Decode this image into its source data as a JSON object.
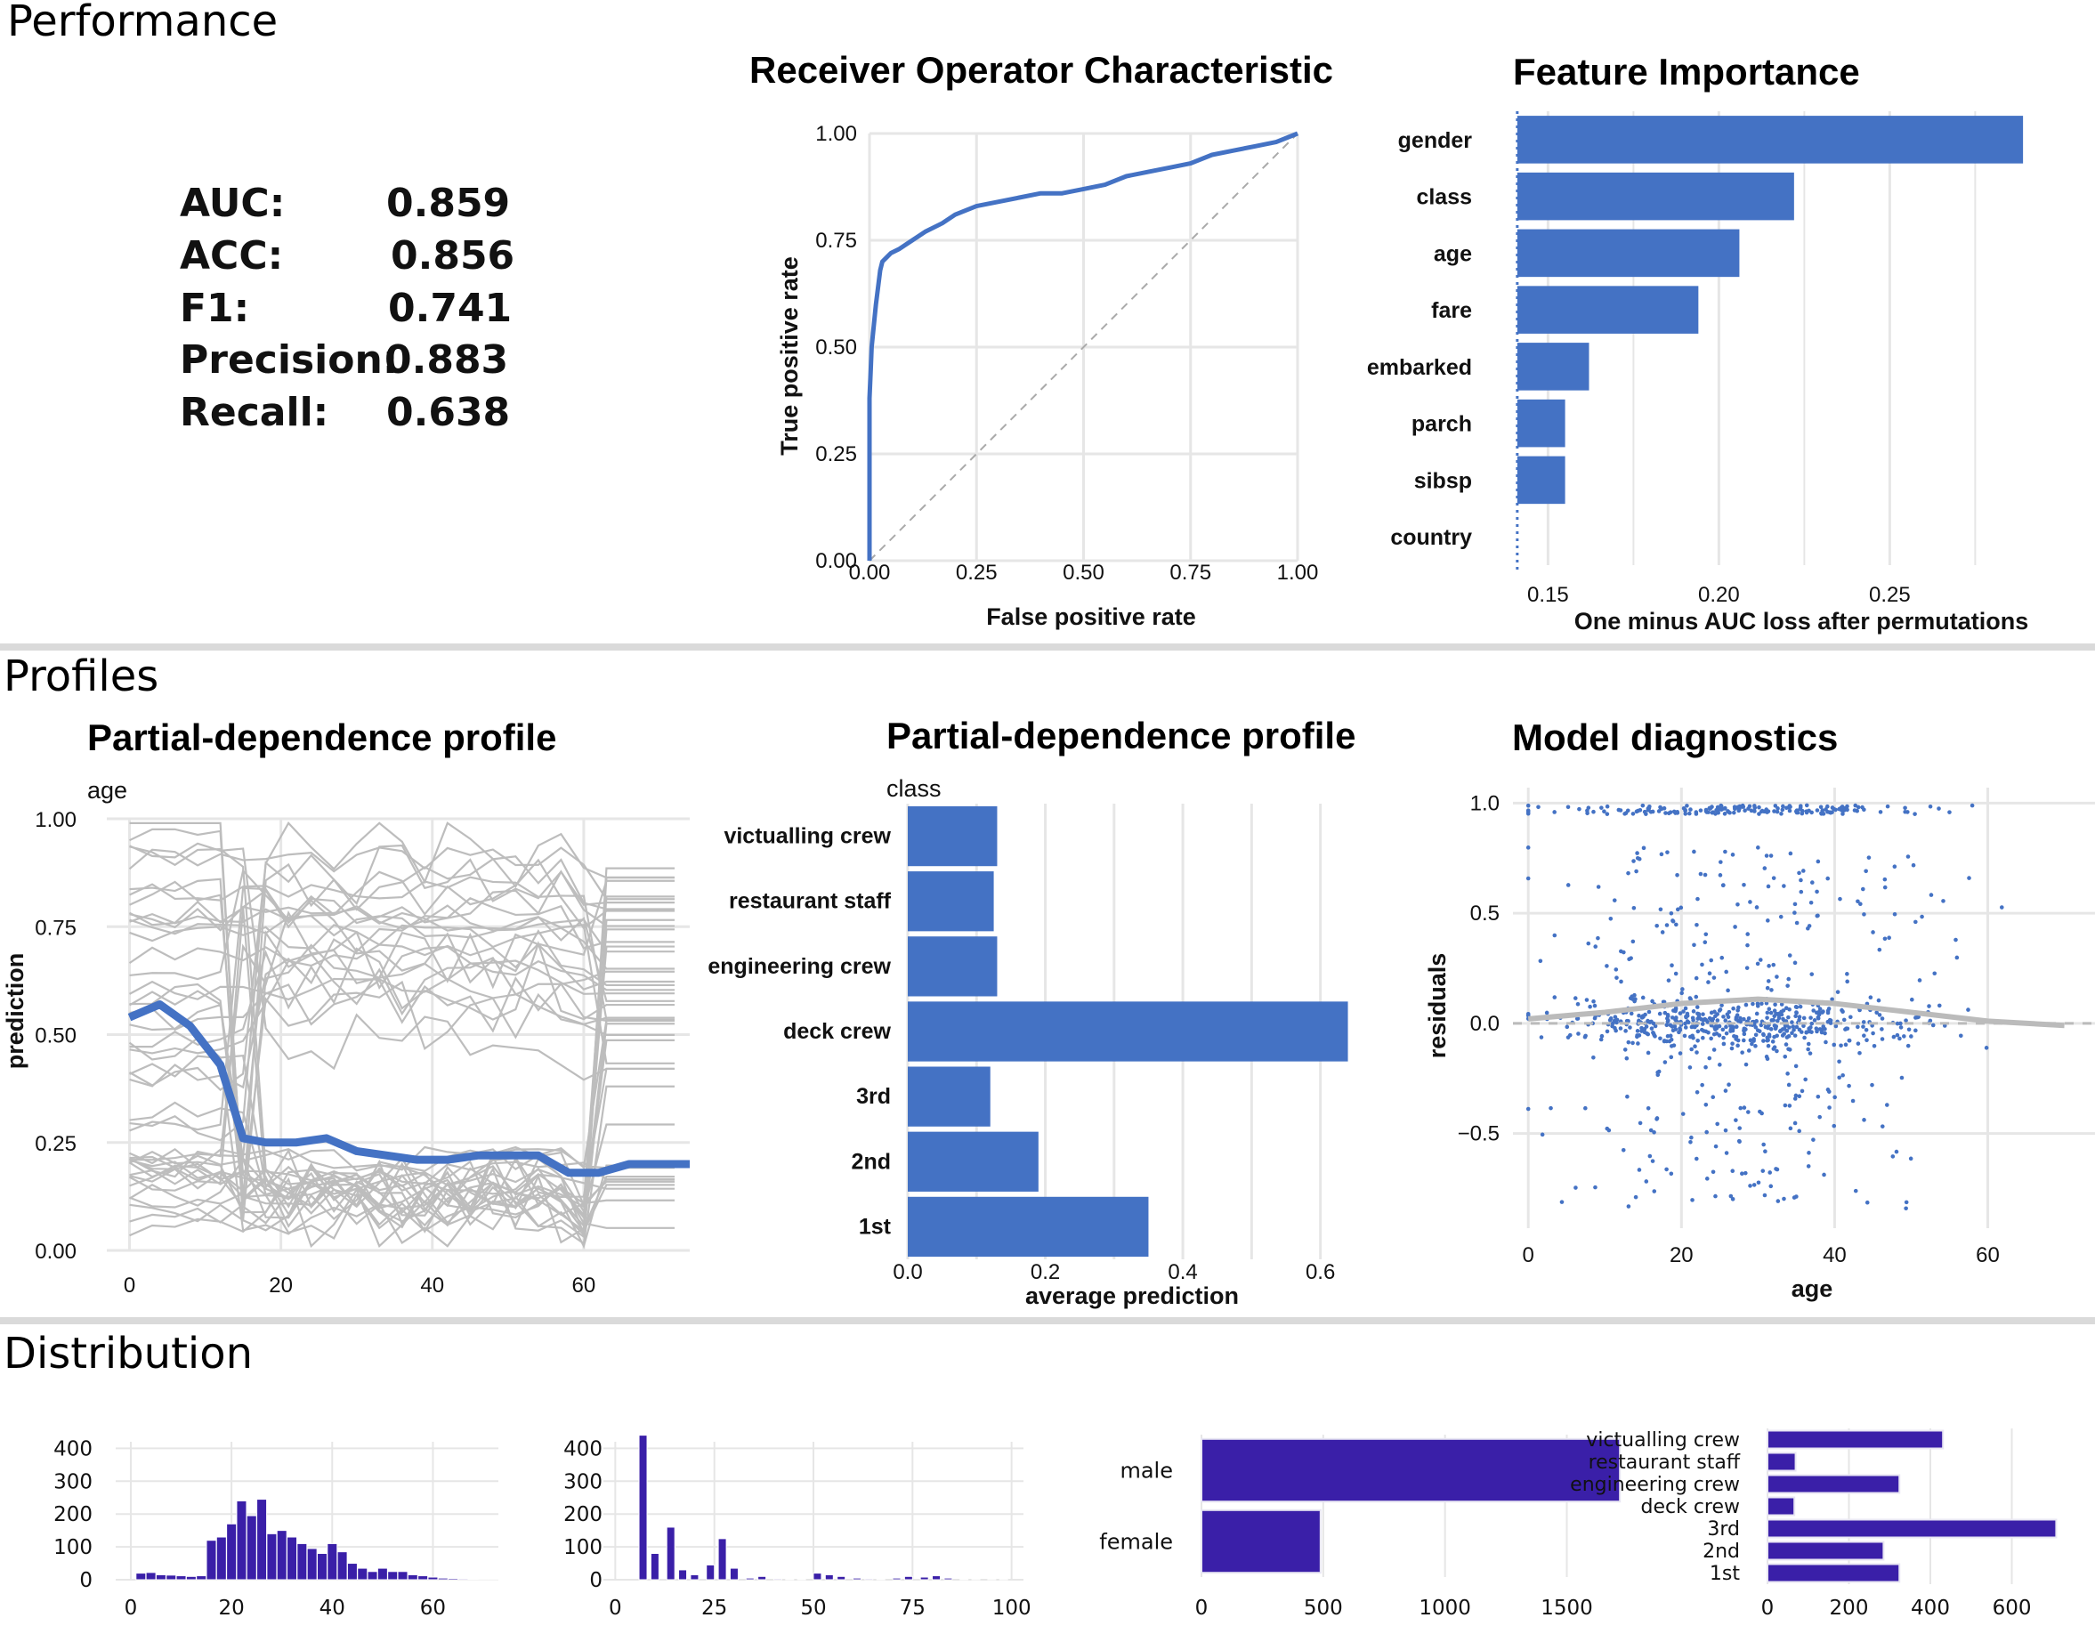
{
  "sections": {
    "performance": "Performance",
    "profiles": "Profiles",
    "distribution": "Distribution"
  },
  "colors": {
    "accent": "#4472c4",
    "distribution": "#3a1fa8",
    "profile_lines": "#bdbdbd",
    "gridline": "#e6e6e6",
    "separator": "#dadada"
  },
  "metrics": [
    {
      "label": "AUC:",
      "value": "0.859"
    },
    {
      "label": "ACC:",
      "value": "0.856"
    },
    {
      "label": "F1:",
      "value": "0.741"
    },
    {
      "label": "Precision:",
      "value": "0.883"
    },
    {
      "label": "Recall:",
      "value": "0.638"
    }
  ],
  "chart_data": [
    {
      "id": "roc",
      "type": "line",
      "title": "Receiver Operator Characteristic",
      "xlabel": "False positive rate",
      "ylabel": "True positive rate",
      "xlim": [
        0,
        1
      ],
      "ylim": [
        0,
        1
      ],
      "xticks": [
        "0.00",
        "0.25",
        "0.50",
        "0.75",
        "1.00"
      ],
      "yticks": [
        "0.00",
        "0.25",
        "0.50",
        "0.75",
        "1.00"
      ],
      "x": [
        0,
        0,
        0.003,
        0.005,
        0.01,
        0.015,
        0.02,
        0.025,
        0.03,
        0.04,
        0.05,
        0.07,
        0.1,
        0.13,
        0.17,
        0.2,
        0.25,
        0.3,
        0.35,
        0.4,
        0.45,
        0.5,
        0.55,
        0.6,
        0.65,
        0.7,
        0.75,
        0.8,
        0.85,
        0.9,
        0.95,
        1.0
      ],
      "y": [
        0,
        0.38,
        0.45,
        0.5,
        0.55,
        0.6,
        0.64,
        0.68,
        0.7,
        0.71,
        0.72,
        0.73,
        0.75,
        0.77,
        0.79,
        0.81,
        0.83,
        0.84,
        0.85,
        0.86,
        0.86,
        0.87,
        0.88,
        0.9,
        0.91,
        0.92,
        0.93,
        0.95,
        0.96,
        0.97,
        0.98,
        1.0
      ],
      "diagonal": true
    },
    {
      "id": "feature_importance",
      "type": "bar",
      "title": "Feature Importance",
      "xlabel": "One minus AUC loss after permutations",
      "categories": [
        "gender",
        "class",
        "age",
        "fare",
        "embarked",
        "parch",
        "sibsp",
        "country"
      ],
      "values": [
        0.289,
        0.222,
        0.206,
        0.194,
        0.162,
        0.155,
        0.155,
        0.141
      ],
      "baseline": 0.141,
      "xlim": [
        0.14,
        0.296
      ],
      "xticks": [
        0.15,
        0.2,
        0.25
      ],
      "xticklabels": [
        "0.15",
        "0.20",
        "0.25"
      ]
    },
    {
      "id": "pdp_age",
      "type": "line",
      "title": "Partial-dependence profile",
      "subtitle": "age",
      "xlabel": "",
      "ylabel": "prediction",
      "xlim": [
        -3,
        74
      ],
      "ylim": [
        0,
        1
      ],
      "xticks": [
        0,
        20,
        40,
        60
      ],
      "yticks": [
        "0.00",
        "0.25",
        "0.50",
        "0.75",
        "1.00"
      ],
      "series": [
        {
          "x": [
            0,
            4,
            8,
            12,
            15,
            18,
            22,
            26,
            30,
            34,
            38,
            42,
            46,
            50,
            54,
            58,
            62,
            66,
            70,
            74
          ],
          "values": [
            0.54,
            0.57,
            0.52,
            0.43,
            0.26,
            0.25,
            0.25,
            0.26,
            0.23,
            0.22,
            0.21,
            0.21,
            0.22,
            0.22,
            0.22,
            0.18,
            0.18,
            0.2,
            0.2,
            0.2
          ]
        }
      ]
    },
    {
      "id": "pdp_class",
      "type": "bar",
      "title": "Partial-dependence profile",
      "subtitle": "class",
      "xlabel": "average prediction",
      "categories": [
        "victualling crew",
        "restaurant staff",
        "engineering crew",
        "deck crew",
        "3rd",
        "2nd",
        "1st"
      ],
      "values": [
        0.13,
        0.125,
        0.13,
        0.64,
        0.12,
        0.19,
        0.35
      ],
      "xlim": [
        0,
        0.66
      ],
      "xticks": [
        0,
        0.2,
        0.4,
        0.6
      ],
      "xticklabels": [
        "0.0",
        "0.2",
        "0.4",
        "0.6"
      ]
    },
    {
      "id": "diagnostics",
      "type": "scatter",
      "title": "Model diagnostics",
      "xlabel": "age",
      "ylabel": "residuals",
      "xlim": [
        -2,
        74
      ],
      "ylim": [
        -0.93,
        1.07
      ],
      "xticks": [
        0,
        20,
        40,
        60
      ],
      "yticks": [
        -0.5,
        0,
        0.5,
        1
      ],
      "yticklabels": [
        "−0.5",
        "0.0",
        "0.5",
        "1.0"
      ],
      "smooth": {
        "x": [
          0,
          10,
          20,
          30,
          40,
          50,
          60,
          70
        ],
        "y": [
          0.02,
          0.05,
          0.09,
          0.11,
          0.09,
          0.05,
          0.01,
          -0.01
        ]
      }
    },
    {
      "id": "dist_age",
      "type": "bar",
      "xlim": [
        -3,
        73
      ],
      "ylim": [
        0,
        420
      ],
      "xticks": [
        0,
        20,
        40,
        60
      ],
      "yticks": [
        0,
        100,
        200,
        300,
        400
      ],
      "x": [
        2,
        4,
        6,
        8,
        10,
        12,
        14,
        16,
        18,
        20,
        22,
        24,
        26,
        28,
        30,
        32,
        34,
        36,
        38,
        40,
        42,
        44,
        46,
        48,
        50,
        52,
        54,
        56,
        58,
        60,
        62,
        64,
        66,
        68,
        70,
        72
      ],
      "values": [
        20,
        22,
        15,
        14,
        12,
        10,
        12,
        120,
        130,
        170,
        240,
        195,
        245,
        140,
        150,
        130,
        110,
        95,
        80,
        110,
        85,
        50,
        35,
        25,
        35,
        25,
        25,
        15,
        12,
        8,
        5,
        4,
        3,
        2,
        1,
        1
      ]
    },
    {
      "id": "dist_fare",
      "type": "bar",
      "xlim": [
        -3,
        103
      ],
      "ylim": [
        0,
        420
      ],
      "xticks": [
        0,
        25,
        50,
        75,
        100
      ],
      "yticks": [
        0,
        100,
        200,
        300,
        400
      ],
      "x": [
        7,
        10,
        14,
        17,
        20,
        24,
        27,
        30,
        34,
        37,
        41,
        44,
        47,
        51,
        54,
        57,
        61,
        64,
        67,
        71,
        74,
        78,
        81,
        84,
        88,
        91,
        95,
        98
      ],
      "values": [
        440,
        80,
        160,
        30,
        15,
        45,
        125,
        35,
        5,
        10,
        3,
        2,
        2,
        20,
        15,
        10,
        5,
        3,
        2,
        5,
        10,
        8,
        12,
        5,
        2,
        1,
        1,
        1
      ]
    },
    {
      "id": "dist_gender",
      "type": "bar",
      "categories": [
        "male",
        "female"
      ],
      "values": [
        1718,
        489
      ],
      "xlim": [
        0,
        1900
      ],
      "xticks": [
        0,
        500,
        1000,
        1500
      ]
    },
    {
      "id": "dist_class",
      "type": "bar",
      "categories": [
        "victualling crew",
        "restaurant staff",
        "engineering crew",
        "deck crew",
        "3rd",
        "2nd",
        "1st"
      ],
      "values": [
        431,
        69,
        324,
        66,
        709,
        285,
        324
      ],
      "xlim": [
        0,
        730
      ],
      "xticks": [
        0,
        200,
        400,
        600
      ]
    }
  ]
}
